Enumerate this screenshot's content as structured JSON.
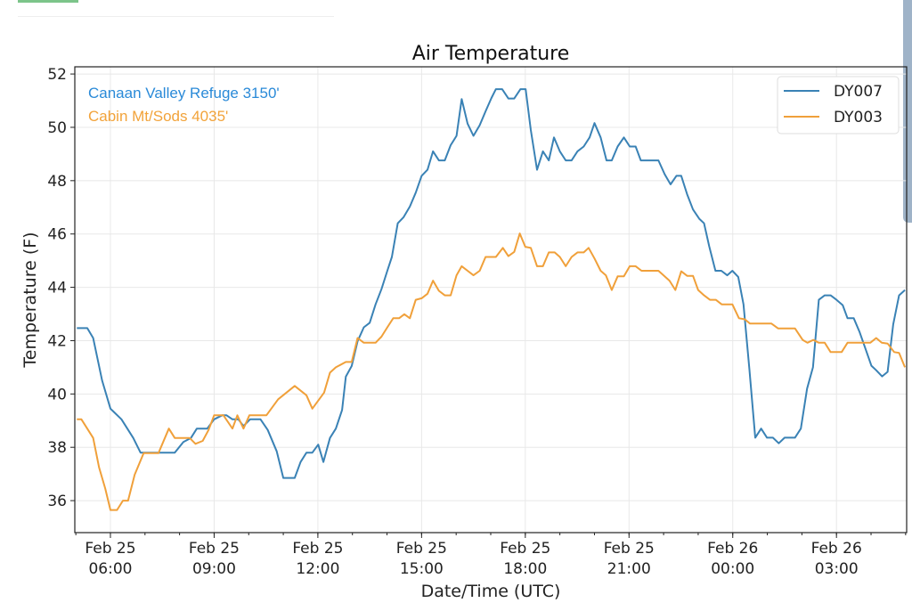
{
  "chart_data": {
    "type": "line",
    "title": "Air Temperature",
    "xlabel": "Date/Time (UTC)",
    "ylabel": "Temperature (F)",
    "x_unit": "hours since Feb 25 00:00 UTC",
    "xlim": [
      4.97,
      29.03
    ],
    "ylim": [
      34.8,
      52.27
    ],
    "grid": true,
    "yticks": [
      36,
      38,
      40,
      42,
      44,
      46,
      48,
      50,
      52
    ],
    "xticks": [
      {
        "value": 6,
        "date": "Feb 25",
        "time": "06:00"
      },
      {
        "value": 9,
        "date": "Feb 25",
        "time": "09:00"
      },
      {
        "value": 12,
        "date": "Feb 25",
        "time": "12:00"
      },
      {
        "value": 15,
        "date": "Feb 25",
        "time": "15:00"
      },
      {
        "value": 18,
        "date": "Feb 25",
        "time": "18:00"
      },
      {
        "value": 21,
        "date": "Feb 25",
        "time": "21:00"
      },
      {
        "value": 24,
        "date": "Feb 26",
        "time": "00:00"
      },
      {
        "value": 27,
        "date": "Feb 26",
        "time": "03:00"
      }
    ],
    "legend": {
      "placement": "top-right"
    },
    "annotations": [
      {
        "text": "Canaan Valley Refuge 3150'",
        "color": "#2a8ad8"
      },
      {
        "text": "Cabin Mt/Sods 4035'",
        "color": "#f2a33a"
      }
    ],
    "series": [
      {
        "name": "DY007",
        "color": "#3a82b5",
        "points": [
          [
            5.03,
            42.47
          ],
          [
            5.33,
            42.47
          ],
          [
            5.5,
            42.1
          ],
          [
            5.76,
            40.5
          ],
          [
            6.0,
            39.45
          ],
          [
            6.32,
            39.05
          ],
          [
            6.66,
            38.35
          ],
          [
            6.87,
            37.8
          ],
          [
            7.86,
            37.8
          ],
          [
            8.11,
            38.2
          ],
          [
            8.33,
            38.35
          ],
          [
            8.5,
            38.7
          ],
          [
            8.8,
            38.7
          ],
          [
            9.0,
            39.05
          ],
          [
            9.23,
            39.2
          ],
          [
            9.36,
            39.2
          ],
          [
            9.53,
            39.05
          ],
          [
            9.7,
            39.05
          ],
          [
            9.85,
            38.8
          ],
          [
            10.04,
            39.05
          ],
          [
            10.34,
            39.05
          ],
          [
            10.55,
            38.65
          ],
          [
            10.81,
            37.85
          ],
          [
            11.0,
            36.85
          ],
          [
            11.33,
            36.85
          ],
          [
            11.5,
            37.45
          ],
          [
            11.67,
            37.8
          ],
          [
            11.84,
            37.8
          ],
          [
            12.01,
            38.1
          ],
          [
            12.16,
            37.45
          ],
          [
            12.35,
            38.35
          ],
          [
            12.52,
            38.7
          ],
          [
            12.7,
            39.4
          ],
          [
            12.81,
            40.65
          ],
          [
            12.98,
            41.05
          ],
          [
            13.15,
            41.98
          ],
          [
            13.33,
            42.5
          ],
          [
            13.5,
            42.67
          ],
          [
            13.67,
            43.36
          ],
          [
            13.84,
            43.93
          ],
          [
            14.01,
            44.62
          ],
          [
            14.14,
            45.14
          ],
          [
            14.31,
            46.4
          ],
          [
            14.48,
            46.63
          ],
          [
            14.66,
            47.03
          ],
          [
            14.83,
            47.55
          ],
          [
            15.0,
            48.18
          ],
          [
            15.17,
            48.41
          ],
          [
            15.33,
            49.1
          ],
          [
            15.5,
            48.76
          ],
          [
            15.67,
            48.76
          ],
          [
            15.84,
            49.33
          ],
          [
            16.01,
            49.68
          ],
          [
            16.16,
            51.06
          ],
          [
            16.33,
            50.14
          ],
          [
            16.5,
            49.68
          ],
          [
            16.68,
            50.08
          ],
          [
            16.85,
            50.6
          ],
          [
            17.02,
            51.1
          ],
          [
            17.15,
            51.43
          ],
          [
            17.33,
            51.43
          ],
          [
            17.51,
            51.08
          ],
          [
            17.68,
            51.08
          ],
          [
            17.86,
            51.43
          ],
          [
            18.01,
            51.43
          ],
          [
            18.16,
            49.9
          ],
          [
            18.34,
            48.41
          ],
          [
            18.51,
            49.1
          ],
          [
            18.68,
            48.76
          ],
          [
            18.83,
            49.62
          ],
          [
            19.0,
            49.1
          ],
          [
            19.17,
            48.76
          ],
          [
            19.34,
            48.76
          ],
          [
            19.51,
            49.1
          ],
          [
            19.69,
            49.28
          ],
          [
            19.86,
            49.62
          ],
          [
            20.0,
            50.16
          ],
          [
            20.18,
            49.62
          ],
          [
            20.35,
            48.76
          ],
          [
            20.5,
            48.76
          ],
          [
            20.67,
            49.28
          ],
          [
            20.85,
            49.62
          ],
          [
            21.02,
            49.28
          ],
          [
            21.19,
            49.28
          ],
          [
            21.34,
            48.76
          ],
          [
            21.85,
            48.76
          ],
          [
            22.03,
            48.24
          ],
          [
            22.2,
            47.86
          ],
          [
            22.37,
            48.18
          ],
          [
            22.51,
            48.18
          ],
          [
            22.68,
            47.49
          ],
          [
            22.85,
            46.92
          ],
          [
            23.03,
            46.57
          ],
          [
            23.17,
            46.4
          ],
          [
            23.32,
            45.54
          ],
          [
            23.5,
            44.62
          ],
          [
            23.67,
            44.62
          ],
          [
            23.84,
            44.45
          ],
          [
            23.99,
            44.62
          ],
          [
            24.16,
            44.39
          ],
          [
            24.31,
            43.36
          ],
          [
            24.48,
            40.94
          ],
          [
            24.65,
            38.36
          ],
          [
            24.82,
            38.7
          ],
          [
            24.99,
            38.36
          ],
          [
            25.16,
            38.36
          ],
          [
            25.33,
            38.15
          ],
          [
            25.5,
            38.36
          ],
          [
            25.8,
            38.36
          ],
          [
            25.97,
            38.7
          ],
          [
            26.15,
            40.2
          ],
          [
            26.32,
            41.0
          ],
          [
            26.49,
            43.53
          ],
          [
            26.66,
            43.7
          ],
          [
            26.83,
            43.7
          ],
          [
            27.0,
            43.53
          ],
          [
            27.18,
            43.33
          ],
          [
            27.32,
            42.84
          ],
          [
            27.5,
            42.84
          ],
          [
            27.67,
            42.32
          ],
          [
            27.84,
            41.69
          ],
          [
            28.01,
            41.06
          ],
          [
            28.15,
            40.89
          ],
          [
            28.32,
            40.66
          ],
          [
            28.48,
            40.83
          ],
          [
            28.64,
            42.61
          ],
          [
            28.81,
            43.7
          ],
          [
            28.98,
            43.9
          ]
        ]
      },
      {
        "name": "DY003",
        "color": "#f0a03a",
        "points": [
          [
            5.03,
            39.05
          ],
          [
            5.16,
            39.05
          ],
          [
            5.5,
            38.35
          ],
          [
            5.67,
            37.25
          ],
          [
            5.85,
            36.45
          ],
          [
            6.0,
            35.65
          ],
          [
            6.19,
            35.65
          ],
          [
            6.36,
            36.0
          ],
          [
            6.51,
            36.0
          ],
          [
            6.7,
            36.97
          ],
          [
            6.96,
            37.78
          ],
          [
            7.39,
            37.78
          ],
          [
            7.69,
            38.7
          ],
          [
            7.86,
            38.35
          ],
          [
            8.29,
            38.35
          ],
          [
            8.46,
            38.13
          ],
          [
            8.67,
            38.24
          ],
          [
            8.84,
            38.65
          ],
          [
            9.0,
            39.2
          ],
          [
            9.27,
            39.2
          ],
          [
            9.53,
            38.7
          ],
          [
            9.67,
            39.2
          ],
          [
            9.85,
            38.7
          ],
          [
            10.02,
            39.2
          ],
          [
            10.51,
            39.2
          ],
          [
            10.85,
            39.8
          ],
          [
            11.33,
            40.3
          ],
          [
            11.67,
            39.95
          ],
          [
            11.84,
            39.45
          ],
          [
            12.18,
            40.05
          ],
          [
            12.35,
            40.8
          ],
          [
            12.52,
            41.0
          ],
          [
            12.81,
            41.2
          ],
          [
            12.98,
            41.2
          ],
          [
            13.15,
            42.1
          ],
          [
            13.33,
            41.92
          ],
          [
            13.67,
            41.92
          ],
          [
            13.84,
            42.15
          ],
          [
            14.01,
            42.5
          ],
          [
            14.18,
            42.84
          ],
          [
            14.35,
            42.84
          ],
          [
            14.5,
            42.99
          ],
          [
            14.66,
            42.84
          ],
          [
            14.83,
            43.53
          ],
          [
            15.0,
            43.59
          ],
          [
            15.17,
            43.76
          ],
          [
            15.33,
            44.25
          ],
          [
            15.5,
            43.87
          ],
          [
            15.67,
            43.7
          ],
          [
            15.84,
            43.7
          ],
          [
            16.01,
            44.45
          ],
          [
            16.16,
            44.79
          ],
          [
            16.33,
            44.62
          ],
          [
            16.5,
            44.45
          ],
          [
            16.68,
            44.62
          ],
          [
            16.85,
            45.14
          ],
          [
            17.15,
            45.14
          ],
          [
            17.35,
            45.48
          ],
          [
            17.51,
            45.17
          ],
          [
            17.68,
            45.33
          ],
          [
            17.84,
            46.02
          ],
          [
            18.0,
            45.52
          ],
          [
            18.16,
            45.48
          ],
          [
            18.34,
            44.79
          ],
          [
            18.51,
            44.79
          ],
          [
            18.68,
            45.31
          ],
          [
            18.85,
            45.31
          ],
          [
            19.0,
            45.14
          ],
          [
            19.17,
            44.79
          ],
          [
            19.34,
            45.14
          ],
          [
            19.51,
            45.31
          ],
          [
            19.69,
            45.31
          ],
          [
            19.83,
            45.48
          ],
          [
            20.0,
            45.08
          ],
          [
            20.18,
            44.62
          ],
          [
            20.33,
            44.45
          ],
          [
            20.5,
            43.9
          ],
          [
            20.67,
            44.41
          ],
          [
            20.85,
            44.41
          ],
          [
            21.02,
            44.79
          ],
          [
            21.19,
            44.79
          ],
          [
            21.36,
            44.62
          ],
          [
            21.85,
            44.62
          ],
          [
            22.17,
            44.25
          ],
          [
            22.34,
            43.9
          ],
          [
            22.51,
            44.6
          ],
          [
            22.68,
            44.43
          ],
          [
            22.85,
            44.43
          ],
          [
            23.0,
            43.9
          ],
          [
            23.17,
            43.7
          ],
          [
            23.34,
            43.53
          ],
          [
            23.51,
            43.53
          ],
          [
            23.68,
            43.36
          ],
          [
            23.99,
            43.36
          ],
          [
            24.18,
            42.84
          ],
          [
            24.35,
            42.8
          ],
          [
            24.5,
            42.64
          ],
          [
            25.12,
            42.64
          ],
          [
            25.31,
            42.46
          ],
          [
            25.8,
            42.46
          ],
          [
            26.02,
            42.03
          ],
          [
            26.16,
            41.92
          ],
          [
            26.33,
            42.03
          ],
          [
            26.49,
            41.92
          ],
          [
            26.66,
            41.92
          ],
          [
            26.83,
            41.57
          ],
          [
            27.15,
            41.57
          ],
          [
            27.32,
            41.92
          ],
          [
            27.98,
            41.92
          ],
          [
            28.15,
            42.1
          ],
          [
            28.31,
            41.92
          ],
          [
            28.48,
            41.89
          ],
          [
            28.67,
            41.57
          ],
          [
            28.81,
            41.54
          ],
          [
            28.98,
            41.0
          ]
        ]
      }
    ]
  }
}
